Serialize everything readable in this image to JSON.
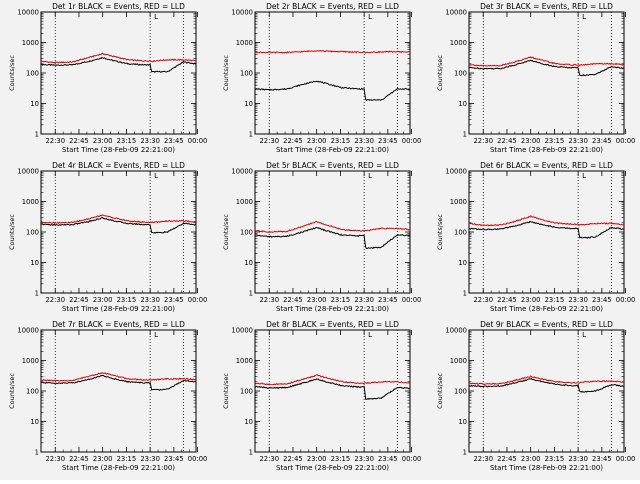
{
  "figure": {
    "background": "#f2f2f2",
    "series_colors": {
      "events": "#000000",
      "lld": "#e00000"
    },
    "xlabel": "Start Time (28-Feb-09 22:21:00)",
    "ylabel": "Counts/sec",
    "x_ticks": [
      "22:30",
      "22:45",
      "23:00",
      "23:15",
      "23:30",
      "23:45",
      "00:00"
    ],
    "y_ticks": [
      "1",
      "10",
      "100",
      "1000",
      "10000"
    ],
    "corner_marker": "L"
  },
  "chart_data": [
    {
      "type": "line",
      "title": "Det 1r BLACK = Events, RED = LLD",
      "xlabel": "Start Time (28-Feb-09 22:21:00)",
      "ylabel": "Counts/sec",
      "xlim_minutes": [
        0,
        98
      ],
      "ylim": [
        1,
        10000
      ],
      "yscale": "log",
      "vlines_minutes": [
        9,
        69,
        90
      ],
      "x": [
        0,
        9,
        20,
        30,
        39,
        45,
        55,
        65,
        69,
        70,
        75,
        80,
        90,
        95,
        98
      ],
      "series": [
        {
          "name": "Events",
          "color": "#000000",
          "values": [
            190,
            180,
            185,
            240,
            320,
            260,
            200,
            185,
            185,
            110,
            110,
            110,
            230,
            210,
            200
          ]
        },
        {
          "name": "LLD",
          "color": "#e00000",
          "values": [
            240,
            220,
            230,
            320,
            430,
            360,
            270,
            250,
            250,
            240,
            260,
            270,
            270,
            260,
            250
          ]
        }
      ]
    },
    {
      "type": "line",
      "title": "Det 2r BLACK = Events, RED = LLD",
      "xlabel": "Start Time (28-Feb-09 22:21:00)",
      "ylabel": "Counts/sec",
      "xlim_minutes": [
        0,
        98
      ],
      "ylim": [
        1,
        10000
      ],
      "yscale": "log",
      "vlines_minutes": [
        9,
        69,
        90
      ],
      "x": [
        0,
        9,
        20,
        30,
        39,
        45,
        55,
        65,
        69,
        70,
        75,
        80,
        90,
        95,
        98
      ],
      "series": [
        {
          "name": "Events",
          "color": "#000000",
          "values": [
            30,
            28,
            30,
            42,
            55,
            45,
            33,
            30,
            30,
            13,
            13,
            13,
            30,
            30,
            28
          ]
        },
        {
          "name": "LLD",
          "color": "#e00000",
          "values": [
            480,
            470,
            470,
            500,
            540,
            520,
            500,
            480,
            480,
            470,
            480,
            490,
            500,
            490,
            480
          ]
        }
      ]
    },
    {
      "type": "line",
      "title": "Det 3r BLACK = Events, RED = LLD",
      "xlabel": "Start Time (28-Feb-09 22:21:00)",
      "ylabel": "Counts/sec",
      "xlim_minutes": [
        0,
        98
      ],
      "ylim": [
        1,
        10000
      ],
      "yscale": "log",
      "vlines_minutes": [
        9,
        69,
        90
      ],
      "x": [
        0,
        9,
        20,
        30,
        39,
        45,
        55,
        65,
        69,
        70,
        75,
        80,
        90,
        95,
        98
      ],
      "series": [
        {
          "name": "Events",
          "color": "#000000",
          "values": [
            150,
            140,
            140,
            190,
            260,
            210,
            160,
            150,
            150,
            85,
            85,
            90,
            160,
            150,
            140
          ]
        },
        {
          "name": "LLD",
          "color": "#e00000",
          "values": [
            190,
            170,
            175,
            240,
            330,
            270,
            200,
            185,
            185,
            180,
            190,
            200,
            200,
            195,
            180
          ]
        }
      ]
    },
    {
      "type": "line",
      "title": "Det 4r BLACK = Events, RED = LLD",
      "xlabel": "Start Time (28-Feb-09 22:21:00)",
      "ylabel": "Counts/sec",
      "xlim_minutes": [
        0,
        98
      ],
      "ylim": [
        1,
        10000
      ],
      "yscale": "log",
      "vlines_minutes": [
        9,
        69,
        90
      ],
      "x": [
        0,
        9,
        20,
        30,
        39,
        45,
        55,
        65,
        69,
        70,
        75,
        80,
        90,
        95,
        98
      ],
      "series": [
        {
          "name": "Events",
          "color": "#000000",
          "values": [
            180,
            170,
            175,
            220,
            290,
            240,
            190,
            175,
            175,
            95,
            95,
            100,
            190,
            180,
            170
          ]
        },
        {
          "name": "LLD",
          "color": "#e00000",
          "values": [
            210,
            200,
            205,
            270,
            360,
            300,
            230,
            210,
            210,
            205,
            215,
            230,
            230,
            220,
            210
          ]
        }
      ]
    },
    {
      "type": "line",
      "title": "Det 5r BLACK = Events, RED = LLD",
      "xlabel": "Start Time (28-Feb-09 22:21:00)",
      "ylabel": "Counts/sec",
      "xlim_minutes": [
        0,
        98
      ],
      "ylim": [
        1,
        10000
      ],
      "yscale": "log",
      "vlines_minutes": [
        9,
        69,
        90
      ],
      "x": [
        0,
        9,
        20,
        30,
        39,
        45,
        55,
        65,
        69,
        70,
        75,
        80,
        90,
        95,
        98
      ],
      "series": [
        {
          "name": "Events",
          "color": "#000000",
          "values": [
            80,
            70,
            72,
            100,
            140,
            110,
            80,
            75,
            75,
            30,
            30,
            32,
            80,
            78,
            75
          ]
        },
        {
          "name": "LLD",
          "color": "#e00000",
          "values": [
            110,
            100,
            105,
            150,
            220,
            170,
            120,
            110,
            110,
            110,
            120,
            130,
            130,
            125,
            115
          ]
        }
      ]
    },
    {
      "type": "line",
      "title": "Det 6r BLACK = Events, RED = LLD",
      "xlabel": "Start Time (28-Feb-09 22:21:00)",
      "ylabel": "Counts/sec",
      "xlim_minutes": [
        0,
        98
      ],
      "ylim": [
        1,
        10000
      ],
      "yscale": "log",
      "vlines_minutes": [
        9,
        69,
        90
      ],
      "x": [
        0,
        9,
        20,
        30,
        39,
        45,
        55,
        65,
        69,
        70,
        75,
        80,
        90,
        95,
        98
      ],
      "series": [
        {
          "name": "Events",
          "color": "#000000",
          "values": [
            130,
            120,
            125,
            160,
            220,
            180,
            140,
            130,
            130,
            65,
            65,
            70,
            140,
            130,
            120
          ]
        },
        {
          "name": "LLD",
          "color": "#e00000",
          "values": [
            190,
            165,
            170,
            230,
            330,
            260,
            195,
            180,
            180,
            170,
            180,
            190,
            190,
            180,
            170
          ]
        }
      ]
    },
    {
      "type": "line",
      "title": "Det 7r BLACK = Events, RED = LLD",
      "xlabel": "Start Time (28-Feb-09 22:21:00)",
      "ylabel": "Counts/sec",
      "xlim_minutes": [
        0,
        98
      ],
      "ylim": [
        1,
        10000
      ],
      "yscale": "log",
      "vlines_minutes": [
        9,
        69,
        90
      ],
      "x": [
        0,
        9,
        20,
        30,
        39,
        45,
        55,
        65,
        69,
        70,
        75,
        80,
        90,
        95,
        98
      ],
      "series": [
        {
          "name": "Events",
          "color": "#000000",
          "values": [
            190,
            180,
            185,
            240,
            320,
            260,
            200,
            185,
            185,
            110,
            110,
            115,
            220,
            210,
            200
          ]
        },
        {
          "name": "LLD",
          "color": "#e00000",
          "values": [
            230,
            215,
            220,
            300,
            400,
            330,
            250,
            230,
            230,
            230,
            240,
            250,
            250,
            245,
            235
          ]
        }
      ]
    },
    {
      "type": "line",
      "title": "Det 8r BLACK = Events, RED = LLD",
      "xlabel": "Start Time (28-Feb-09 22:21:00)",
      "ylabel": "Counts/sec",
      "xlim_minutes": [
        0,
        98
      ],
      "ylim": [
        1,
        10000
      ],
      "yscale": "log",
      "vlines_minutes": [
        9,
        69,
        90
      ],
      "x": [
        0,
        9,
        20,
        30,
        39,
        45,
        55,
        65,
        69,
        70,
        75,
        80,
        90,
        95,
        98
      ],
      "series": [
        {
          "name": "Events",
          "color": "#000000",
          "values": [
            140,
            125,
            130,
            180,
            250,
            200,
            150,
            135,
            135,
            55,
            55,
            60,
            130,
            125,
            120
          ]
        },
        {
          "name": "LLD",
          "color": "#e00000",
          "values": [
            180,
            165,
            170,
            240,
            330,
            270,
            200,
            180,
            180,
            180,
            190,
            200,
            200,
            190,
            180
          ]
        }
      ]
    },
    {
      "type": "line",
      "title": "Det 9r BLACK = Events, RED = LLD",
      "xlabel": "Start Time (28-Feb-09 22:21:00)",
      "ylabel": "Counts/sec",
      "xlim_minutes": [
        0,
        98
      ],
      "ylim": [
        1,
        10000
      ],
      "yscale": "log",
      "vlines_minutes": [
        9,
        69,
        90
      ],
      "x": [
        0,
        9,
        20,
        30,
        39,
        45,
        55,
        65,
        69,
        70,
        75,
        80,
        90,
        95,
        98
      ],
      "series": [
        {
          "name": "Events",
          "color": "#000000",
          "values": [
            150,
            140,
            145,
            190,
            250,
            210,
            165,
            150,
            150,
            95,
            95,
            100,
            160,
            150,
            140
          ]
        },
        {
          "name": "LLD",
          "color": "#e00000",
          "values": [
            180,
            170,
            175,
            230,
            300,
            250,
            200,
            185,
            185,
            190,
            200,
            210,
            210,
            205,
            195
          ]
        }
      ]
    }
  ]
}
